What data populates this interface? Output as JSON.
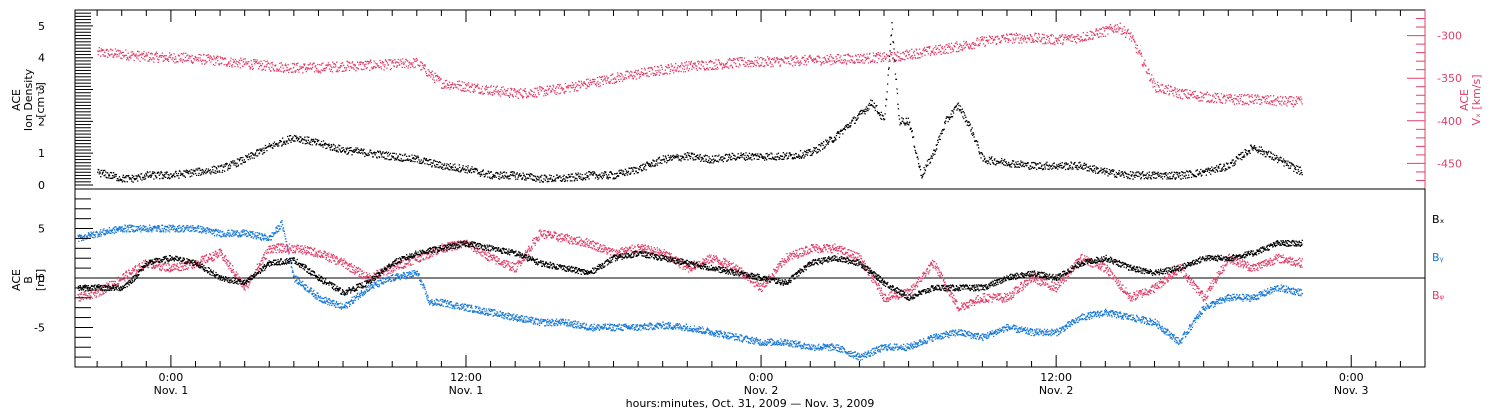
{
  "chart_data": [
    {
      "type": "scatter",
      "ylabel_lines": [
        "ACE",
        "Ion Density",
        "[cm⁻³]"
      ],
      "ylim": [
        0,
        5.5
      ],
      "yticks": [
        "0",
        "1",
        "2",
        "3",
        "4",
        "5"
      ],
      "right_ylabel_lines": [
        "ACE",
        "Vₓ [km/s]"
      ],
      "right_ylim": [
        -480,
        -270
      ],
      "right_yticks": [
        "-300",
        "-350",
        "-400",
        "-450"
      ],
      "series": [
        {
          "name": "",
          "axis": "left",
          "color": "#000000",
          "x": [
            -3,
            -2.5,
            -2,
            -1.5,
            -1,
            0,
            1,
            2,
            3,
            4,
            5,
            6,
            7,
            8,
            9,
            10,
            11,
            12,
            13,
            14,
            15,
            16,
            17,
            18,
            19,
            20,
            21,
            22,
            23,
            24,
            25,
            26,
            27,
            28,
            28.5,
            29,
            29.3,
            29.6,
            30,
            30.5,
            31,
            31.5,
            32,
            32.5,
            33,
            34,
            35,
            36,
            37,
            38,
            39,
            40,
            41,
            42,
            43,
            44,
            44.5,
            45,
            46
          ],
          "y": [
            0.4,
            0.3,
            0.2,
            0.2,
            0.3,
            0.3,
            0.4,
            0.5,
            0.8,
            1.2,
            1.5,
            1.3,
            1.1,
            1.0,
            0.9,
            0.8,
            0.6,
            0.5,
            0.3,
            0.3,
            0.2,
            0.2,
            0.3,
            0.3,
            0.5,
            0.8,
            0.9,
            0.8,
            0.9,
            0.9,
            0.9,
            1.0,
            1.5,
            2.2,
            2.6,
            2.0,
            5.0,
            2.0,
            2.0,
            0.3,
            1.0,
            2.0,
            2.5,
            1.8,
            0.8,
            0.7,
            0.6,
            0.6,
            0.6,
            0.4,
            0.3,
            0.3,
            0.3,
            0.4,
            0.6,
            1.2,
            1.0,
            0.8,
            0.4
          ]
        },
        {
          "name": "",
          "axis": "right",
          "color": "#e0406a",
          "x": [
            -3,
            -2,
            -1,
            0,
            1,
            2,
            3,
            4,
            5,
            6,
            7,
            8,
            9,
            10,
            10.5,
            11,
            12,
            13,
            14,
            15,
            16,
            17,
            18,
            19,
            20,
            21,
            22,
            23,
            24,
            25,
            26,
            27,
            28,
            28.5,
            29,
            29.5,
            30,
            31,
            32,
            33,
            34,
            35,
            36,
            37,
            38,
            38.5,
            39,
            39.5,
            40,
            41,
            42,
            43,
            44,
            45,
            46
          ],
          "y": [
            -320,
            -322,
            -325,
            -326,
            -327,
            -330,
            -333,
            -336,
            -338,
            -338,
            -336,
            -335,
            -334,
            -332,
            -345,
            -356,
            -360,
            -364,
            -368,
            -366,
            -362,
            -356,
            -350,
            -345,
            -340,
            -336,
            -334,
            -332,
            -331,
            -330,
            -329,
            -328,
            -327,
            -326,
            -326,
            -325,
            -322,
            -318,
            -313,
            -307,
            -303,
            -303,
            -305,
            -302,
            -295,
            -290,
            -300,
            -330,
            -360,
            -368,
            -372,
            -375,
            -375,
            -377,
            -378
          ]
        }
      ]
    },
    {
      "type": "line",
      "ylabel_lines": [
        "ACE",
        "B",
        "[nT]"
      ],
      "ylim": [
        -9,
        9
      ],
      "yticks": [
        "5",
        "0",
        "-5"
      ],
      "legend_placement": "right",
      "x_range": [
        -3.9,
        51
      ],
      "xtick_labels": [
        {
          "time": "0:00",
          "date": "Nov. 1"
        },
        {
          "time": "12:00",
          "date": "Nov. 1"
        },
        {
          "time": "0:00",
          "date": "Nov. 2"
        },
        {
          "time": "12:00",
          "date": "Nov. 2"
        },
        {
          "time": "0:00",
          "date": "Nov. 3"
        }
      ],
      "xlabel": "hours:minutes, Oct. 31, 2009 — Nov.  3, 2009",
      "series": [
        {
          "name": "Bₓ",
          "color": "#000000",
          "x": [
            -3.8,
            -3,
            -2,
            -1.5,
            -1,
            0,
            1,
            2,
            3,
            4,
            5,
            6,
            7,
            8,
            9,
            10,
            11,
            12,
            13,
            14,
            15,
            16,
            17,
            18,
            19,
            20,
            21,
            22,
            23,
            24,
            25,
            26,
            27,
            28,
            29,
            30,
            31,
            32,
            33,
            34,
            35,
            36,
            37,
            38,
            39,
            40,
            41,
            42,
            43,
            44,
            45,
            46
          ],
          "y": [
            -1,
            -1,
            -1,
            0,
            1.5,
            2,
            1.5,
            0,
            -0.5,
            1.5,
            1.8,
            0,
            -1.5,
            -0.5,
            1.5,
            2.5,
            3,
            3.5,
            3,
            2.5,
            1.5,
            1,
            0.5,
            2,
            2.5,
            2,
            1.5,
            1,
            0.5,
            0,
            -0.5,
            1.5,
            2,
            1.5,
            -0.5,
            -2,
            -1,
            -1,
            -1,
            0,
            0.5,
            0,
            1.5,
            2,
            1,
            0.5,
            1,
            2,
            2,
            2.5,
            3.5,
            3.5
          ]
        },
        {
          "name": "Bᵧ",
          "color": "#1a7ad8",
          "x": [
            -3.8,
            -3,
            -2,
            -1,
            0,
            1,
            2,
            3,
            4,
            4.5,
            5,
            5.5,
            6,
            7,
            8,
            9,
            10,
            10.5,
            11,
            12,
            13,
            14,
            15,
            16,
            17,
            18,
            19,
            20,
            21,
            22,
            23,
            24,
            25,
            26,
            27,
            28,
            29,
            30,
            31,
            32,
            33,
            34,
            35,
            36,
            37,
            38,
            39,
            40,
            41,
            42,
            43,
            44,
            45,
            46
          ],
          "y": [
            4,
            4.5,
            5,
            5,
            5,
            5,
            4.5,
            4.5,
            4,
            5.5,
            0,
            -1,
            -2,
            -3,
            -1,
            0,
            0.5,
            -2.5,
            -2.5,
            -3,
            -3.5,
            -4,
            -4.5,
            -4.5,
            -5,
            -5,
            -5,
            -4.8,
            -5,
            -5.5,
            -6,
            -6.5,
            -6.5,
            -7,
            -7,
            -8,
            -7,
            -7,
            -6,
            -5.5,
            -6,
            -5,
            -5.5,
            -5.5,
            -4,
            -3.5,
            -4,
            -4.5,
            -6.5,
            -3,
            -2,
            -2,
            -1,
            -1.5
          ]
        },
        {
          "name": "Bᵩ",
          "color": "#e0406a",
          "x": [
            -3.8,
            -3,
            -2,
            -1,
            0,
            1,
            2,
            3,
            4,
            5,
            6,
            7,
            8,
            9,
            10,
            11,
            12,
            13,
            14,
            15,
            16,
            17,
            18,
            19,
            20,
            21,
            22,
            23,
            24,
            25,
            26,
            27,
            28,
            29,
            30,
            31,
            32,
            33,
            34,
            35,
            36,
            37,
            38,
            39,
            40,
            41,
            42,
            43,
            44,
            45,
            46
          ],
          "y": [
            -2,
            -1.5,
            0,
            1.5,
            1,
            1.5,
            2.5,
            -1,
            3,
            3,
            2.5,
            1.5,
            0,
            1,
            2,
            3,
            3.5,
            2,
            1,
            4.5,
            4,
            3.5,
            2.5,
            3,
            2.5,
            1,
            2,
            1,
            -1,
            2,
            3,
            3,
            2,
            -2,
            -1.5,
            1.5,
            -3,
            -2,
            -2,
            0,
            -1,
            2,
            1,
            -2,
            -1,
            1,
            -2,
            2,
            1,
            2,
            1.5
          ]
        }
      ]
    }
  ]
}
